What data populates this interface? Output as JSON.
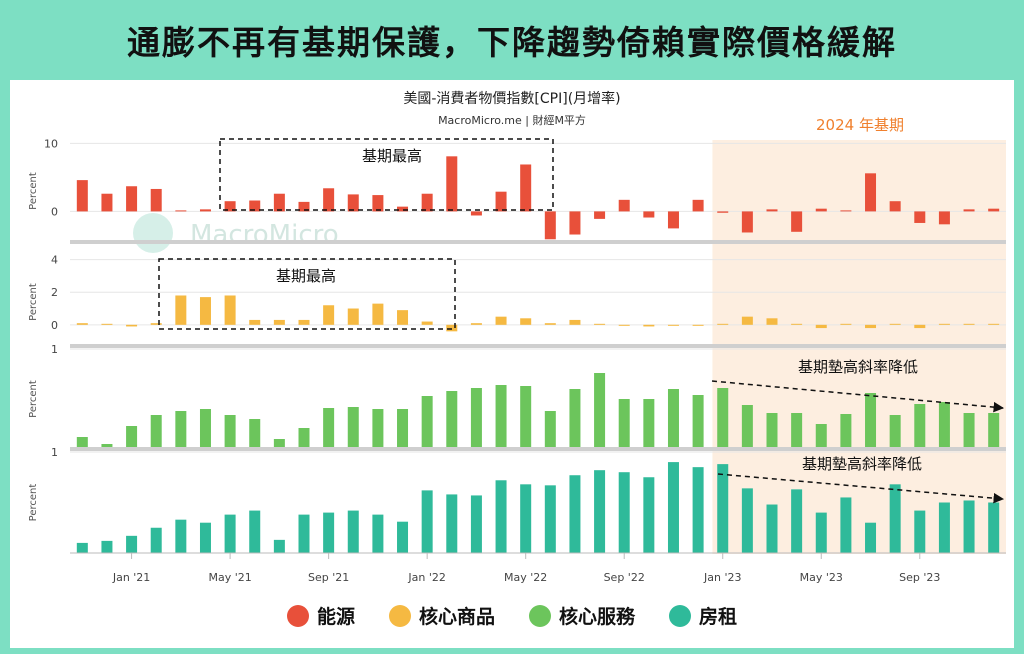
{
  "headline": "通膨不再有基期保護，下降趨勢倚賴實際價格緩解",
  "chart_title": "美國-消費者物價指數[CPI](月增率)",
  "chart_source": "MacroMicro.me | 財經M平方",
  "watermark": "MacroMicro",
  "base_period_label": "2024 年基期",
  "colors": {
    "energy": "#e8503a",
    "goods": "#f5b942",
    "services": "#6cc55c",
    "rent": "#2fba9a",
    "highlight": "#fdeee0",
    "background": "#7ddfc3"
  },
  "annotations": {
    "energy_box": "基期最高",
    "goods_box": "基期最高",
    "services_arrow": "基期墊高斜率降低",
    "rent_arrow": "基期墊高斜率降低"
  },
  "legend": [
    {
      "label": "能源",
      "color": "#e8503a"
    },
    {
      "label": "核心商品",
      "color": "#f5b942"
    },
    {
      "label": "核心服務",
      "color": "#6cc55c"
    },
    {
      "label": "房租",
      "color": "#2fba9a"
    }
  ],
  "chart_data": {
    "type": "bar",
    "x_tick_labels": [
      "Jan '21",
      "May '21",
      "Sep '21",
      "Jan '22",
      "May '22",
      "Sep '22",
      "Jan '23",
      "May '23",
      "Sep '23"
    ],
    "categories": [
      "2020-11",
      "2020-12",
      "2021-01",
      "2021-02",
      "2021-03",
      "2021-04",
      "2021-05",
      "2021-06",
      "2021-07",
      "2021-08",
      "2021-09",
      "2021-10",
      "2021-11",
      "2021-12",
      "2022-01",
      "2022-02",
      "2022-03",
      "2022-04",
      "2022-05",
      "2022-06",
      "2022-07",
      "2022-08",
      "2022-09",
      "2022-10",
      "2022-11",
      "2022-12",
      "2023-01",
      "2023-02",
      "2023-03",
      "2023-04",
      "2023-05",
      "2023-06",
      "2023-07",
      "2023-08",
      "2023-09",
      "2023-10",
      "2023-11",
      "2023-12"
    ],
    "highlight_start_index": 26,
    "panels": [
      {
        "name": "能源",
        "ylabel": "Percent",
        "yticks": [
          0,
          10
        ],
        "ylim": [
          -4.5,
          10.5
        ],
        "values": [
          4.6,
          2.6,
          3.7,
          3.3,
          0.1,
          0.3,
          1.5,
          1.6,
          2.6,
          1.4,
          3.4,
          2.5,
          2.4,
          0.7,
          2.6,
          8.1,
          -0.6,
          2.9,
          6.9,
          -4.1,
          -3.4,
          -1.1,
          1.7,
          -0.9,
          -2.5,
          1.7,
          -0.2,
          -3.1,
          0.3,
          -3.0,
          0.4,
          0.1,
          5.6,
          1.5,
          -1.7,
          -1.9,
          0.3,
          0.4
        ]
      },
      {
        "name": "核心商品",
        "ylabel": "Percent",
        "yticks": [
          0,
          2,
          4
        ],
        "ylim": [
          -1.3,
          4.1
        ],
        "values": [
          0.1,
          0.0,
          -0.1,
          0.1,
          1.8,
          1.7,
          1.8,
          0.3,
          0.3,
          0.3,
          1.2,
          1.0,
          1.3,
          0.9,
          0.2,
          -0.4,
          0.1,
          0.5,
          0.4,
          0.1,
          0.3,
          0.0,
          -0.05,
          -0.1,
          -0.05,
          -0.05,
          0.05,
          0.5,
          0.4,
          0.0,
          -0.2,
          0.0,
          -0.2,
          0.0,
          -0.2,
          0.0,
          0.0,
          0.0
        ]
      },
      {
        "name": "核心服務",
        "ylabel": "Percent",
        "yticks": [
          1
        ],
        "ylim": [
          0,
          1
        ],
        "values": [
          0.12,
          0.05,
          0.23,
          0.34,
          0.38,
          0.4,
          0.34,
          0.3,
          0.1,
          0.21,
          0.41,
          0.42,
          0.4,
          0.4,
          0.53,
          0.58,
          0.61,
          0.64,
          0.63,
          0.38,
          0.6,
          0.76,
          0.5,
          0.5,
          0.6,
          0.54,
          0.61,
          0.44,
          0.36,
          0.36,
          0.25,
          0.35,
          0.56,
          0.34,
          0.45,
          0.47,
          0.36,
          0.36
        ]
      },
      {
        "name": "房租",
        "ylabel": "Percent",
        "yticks": [
          1
        ],
        "ylim": [
          0,
          1
        ],
        "values": [
          0.1,
          0.12,
          0.17,
          0.25,
          0.33,
          0.3,
          0.38,
          0.42,
          0.13,
          0.38,
          0.4,
          0.42,
          0.38,
          0.31,
          0.62,
          0.58,
          0.57,
          0.72,
          0.68,
          0.67,
          0.77,
          0.82,
          0.8,
          0.75,
          0.9,
          0.85,
          0.88,
          0.64,
          0.48,
          0.63,
          0.4,
          0.55,
          0.3,
          0.68,
          0.42,
          0.5,
          0.52,
          0.5
        ]
      }
    ]
  }
}
